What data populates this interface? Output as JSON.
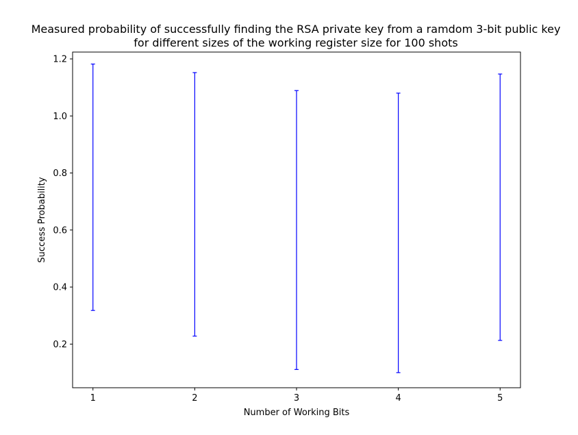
{
  "chart_data": {
    "type": "errorbar",
    "title_lines": [
      "Measured probability of successfully finding the RSA private key from a ramdom 3-bit public key",
      "for different sizes of the working register size for 100 shots"
    ],
    "xlabel": "Number of Working Bits",
    "ylabel": "Success Probability",
    "x": [
      1,
      2,
      3,
      4,
      5
    ],
    "x_tick_labels": [
      "1",
      "2",
      "3",
      "4",
      "5"
    ],
    "xlim": [
      0.8,
      5.2
    ],
    "y_ticks": [
      0.2,
      0.4,
      0.6,
      0.8,
      1.0,
      1.2
    ],
    "y_tick_labels": [
      "0.2",
      "0.4",
      "0.6",
      "0.8",
      "1.0",
      "1.2"
    ],
    "ylim": [
      0.047,
      1.224
    ],
    "error_bars": [
      {
        "x": 1,
        "low": 0.318,
        "high": 1.182
      },
      {
        "x": 2,
        "low": 0.228,
        "high": 1.152
      },
      {
        "x": 3,
        "low": 0.111,
        "high": 1.089
      },
      {
        "x": 4,
        "low": 0.1,
        "high": 1.08
      },
      {
        "x": 5,
        "low": 0.213,
        "high": 1.147
      }
    ],
    "bar_color": "#0000ff",
    "grid": false
  }
}
